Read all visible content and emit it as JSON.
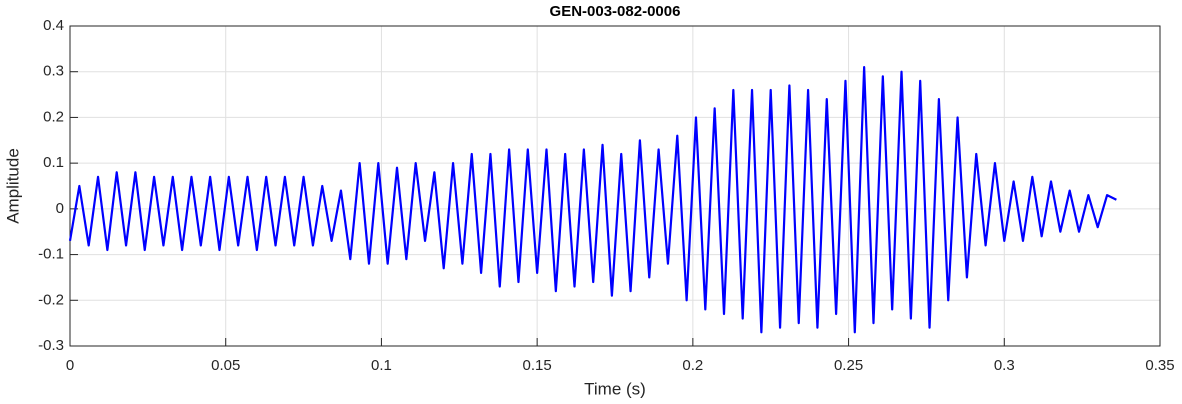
{
  "chart_data": {
    "type": "line",
    "title": "GEN-003-082-0006",
    "x_label": "Time (s)",
    "y_label": "Amplitude",
    "color": "#0000ff",
    "grid": true,
    "xlim": [
      0,
      0.35
    ],
    "xticks": [
      0,
      0.05,
      0.1,
      0.15,
      0.2,
      0.25,
      0.3,
      0.35
    ],
    "ylim": [
      -0.3,
      0.4
    ],
    "yticks": [
      -0.3,
      -0.2,
      -0.1,
      0,
      0.1,
      0.2,
      0.3,
      0.4
    ],
    "x": [
      0,
      0.003,
      0.006,
      0.009,
      0.012,
      0.015,
      0.018,
      0.021,
      0.024,
      0.027,
      0.03,
      0.033,
      0.036,
      0.039,
      0.042,
      0.045,
      0.048,
      0.051,
      0.054,
      0.057,
      0.06,
      0.063,
      0.066,
      0.069,
      0.072,
      0.075,
      0.078,
      0.081,
      0.084,
      0.087,
      0.09,
      0.093,
      0.096,
      0.099,
      0.102,
      0.105,
      0.108,
      0.111,
      0.114,
      0.117,
      0.12,
      0.123,
      0.126,
      0.129,
      0.132,
      0.135,
      0.138,
      0.141,
      0.144,
      0.147,
      0.15,
      0.153,
      0.156,
      0.159,
      0.162,
      0.165,
      0.168,
      0.171,
      0.174,
      0.177,
      0.18,
      0.183,
      0.186,
      0.189,
      0.192,
      0.195,
      0.198,
      0.201,
      0.204,
      0.207,
      0.21,
      0.213,
      0.216,
      0.219,
      0.222,
      0.225,
      0.228,
      0.231,
      0.234,
      0.237,
      0.24,
      0.243,
      0.246,
      0.249,
      0.252,
      0.255,
      0.258,
      0.261,
      0.264,
      0.267,
      0.27,
      0.273,
      0.276,
      0.279,
      0.282,
      0.285,
      0.288,
      0.291,
      0.294,
      0.297,
      0.3,
      0.303,
      0.306,
      0.309,
      0.312,
      0.315,
      0.318,
      0.321,
      0.324,
      0.327,
      0.33,
      0.333,
      0.336
    ],
    "values": [
      -0.07,
      0.05,
      -0.08,
      0.07,
      -0.09,
      0.08,
      -0.08,
      0.08,
      -0.09,
      0.07,
      -0.08,
      0.07,
      -0.09,
      0.07,
      -0.08,
      0.07,
      -0.09,
      0.07,
      -0.08,
      0.07,
      -0.09,
      0.07,
      -0.08,
      0.07,
      -0.08,
      0.07,
      -0.08,
      0.05,
      -0.07,
      0.04,
      -0.11,
      0.1,
      -0.12,
      0.1,
      -0.12,
      0.09,
      -0.11,
      0.1,
      -0.07,
      0.08,
      -0.13,
      0.1,
      -0.12,
      0.12,
      -0.14,
      0.12,
      -0.17,
      0.13,
      -0.16,
      0.13,
      -0.14,
      0.13,
      -0.18,
      0.12,
      -0.17,
      0.13,
      -0.16,
      0.14,
      -0.19,
      0.12,
      -0.18,
      0.15,
      -0.15,
      0.13,
      -0.12,
      0.16,
      -0.2,
      0.2,
      -0.22,
      0.22,
      -0.23,
      0.26,
      -0.24,
      0.26,
      -0.27,
      0.26,
      -0.26,
      0.27,
      -0.25,
      0.26,
      -0.26,
      0.24,
      -0.23,
      0.28,
      -0.27,
      0.31,
      -0.25,
      0.29,
      -0.22,
      0.3,
      -0.24,
      0.28,
      -0.26,
      0.24,
      -0.2,
      0.2,
      -0.15,
      0.12,
      -0.08,
      0.1,
      -0.07,
      0.06,
      -0.07,
      0.07,
      -0.06,
      0.06,
      -0.05,
      0.04,
      -0.05,
      0.03,
      -0.04,
      0.03,
      0.02
    ]
  }
}
